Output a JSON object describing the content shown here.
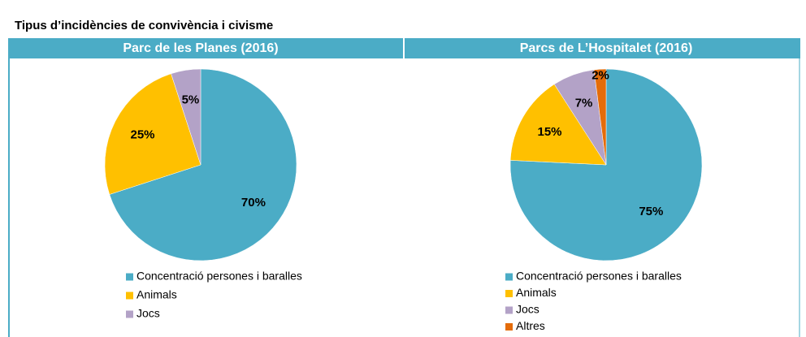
{
  "page_title": "Tipus d’incidències de convivència i civisme",
  "chart_data": [
    {
      "type": "pie",
      "title": "Parc de les Planes (2016)",
      "categories": [
        "Concentració persones i baralles",
        "Animals",
        "Jocs"
      ],
      "values": [
        70,
        25,
        5
      ],
      "value_labels": [
        "70%",
        "25%",
        "5%"
      ],
      "colors": [
        "#4bacc6",
        "#ffc000",
        "#b3a2c7"
      ]
    },
    {
      "type": "pie",
      "title": "Parcs de L’Hospitalet (2016)",
      "categories": [
        "Concentració persones i baralles",
        "Animals",
        "Jocs",
        "Altres"
      ],
      "values": [
        75,
        15,
        7,
        2
      ],
      "value_labels": [
        "75%",
        "15%",
        "7%",
        "2%"
      ],
      "colors": [
        "#4bacc6",
        "#ffc000",
        "#b3a2c7",
        "#e46c0a"
      ]
    }
  ]
}
